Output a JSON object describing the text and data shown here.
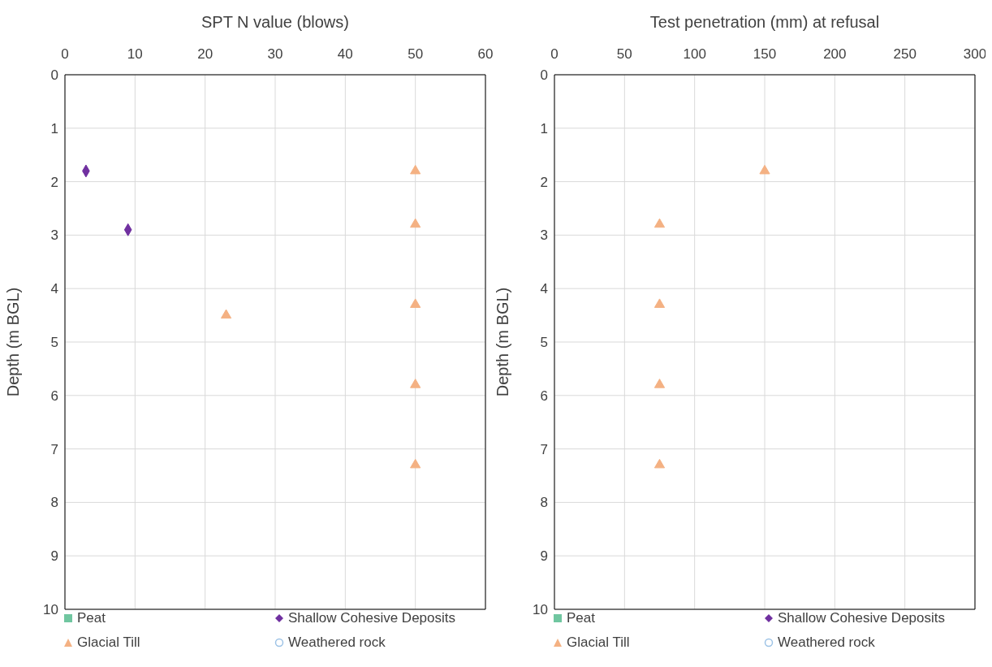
{
  "chart_data": [
    {
      "type": "scatter",
      "xlabel": "SPT N value (blows)",
      "ylabel": "Depth (m BGL)",
      "xlim": [
        0,
        60
      ],
      "xticks": [
        0,
        10,
        20,
        30,
        40,
        50,
        60
      ],
      "ylim": [
        10,
        0
      ],
      "yticks": [
        0,
        1,
        2,
        3,
        4,
        5,
        6,
        7,
        8,
        9,
        10
      ],
      "grid": true,
      "legend": "bottom",
      "series": [
        {
          "name": "Peat",
          "color": "#70c6a0",
          "marker": "square"
        },
        {
          "name": "Shallow Cohesive Deposits",
          "color": "#7030a0",
          "marker": "diamond",
          "x": [
            3,
            9
          ],
          "values": [
            1.8,
            2.9
          ]
        },
        {
          "name": "Glacial Till",
          "color": "#f4b183",
          "marker": "triangle",
          "x": [
            50,
            50,
            23,
            50,
            50,
            50
          ],
          "values": [
            1.8,
            2.8,
            4.5,
            4.3,
            5.8,
            7.3
          ]
        },
        {
          "name": "Weathered rock",
          "color": "#9dc3e6",
          "marker": "circle"
        }
      ]
    },
    {
      "type": "scatter",
      "xlabel": "Test penetration (mm) at refusal",
      "ylabel": "Depth (m BGL)",
      "xlim": [
        0,
        300
      ],
      "xticks": [
        0,
        50,
        100,
        150,
        200,
        250,
        300
      ],
      "ylim": [
        10,
        0
      ],
      "yticks": [
        0,
        1,
        2,
        3,
        4,
        5,
        6,
        7,
        8,
        9,
        10
      ],
      "grid": true,
      "legend": "bottom",
      "series": [
        {
          "name": "Peat",
          "color": "#70c6a0",
          "marker": "square"
        },
        {
          "name": "Shallow Cohesive Deposits",
          "color": "#7030a0",
          "marker": "diamond"
        },
        {
          "name": "Glacial Till",
          "color": "#f4b183",
          "marker": "triangle",
          "x": [
            150,
            75,
            75,
            75,
            75
          ],
          "values": [
            1.8,
            2.8,
            4.3,
            5.8,
            7.3
          ]
        },
        {
          "name": "Weathered rock",
          "color": "#9dc3e6",
          "marker": "circle"
        }
      ]
    }
  ]
}
